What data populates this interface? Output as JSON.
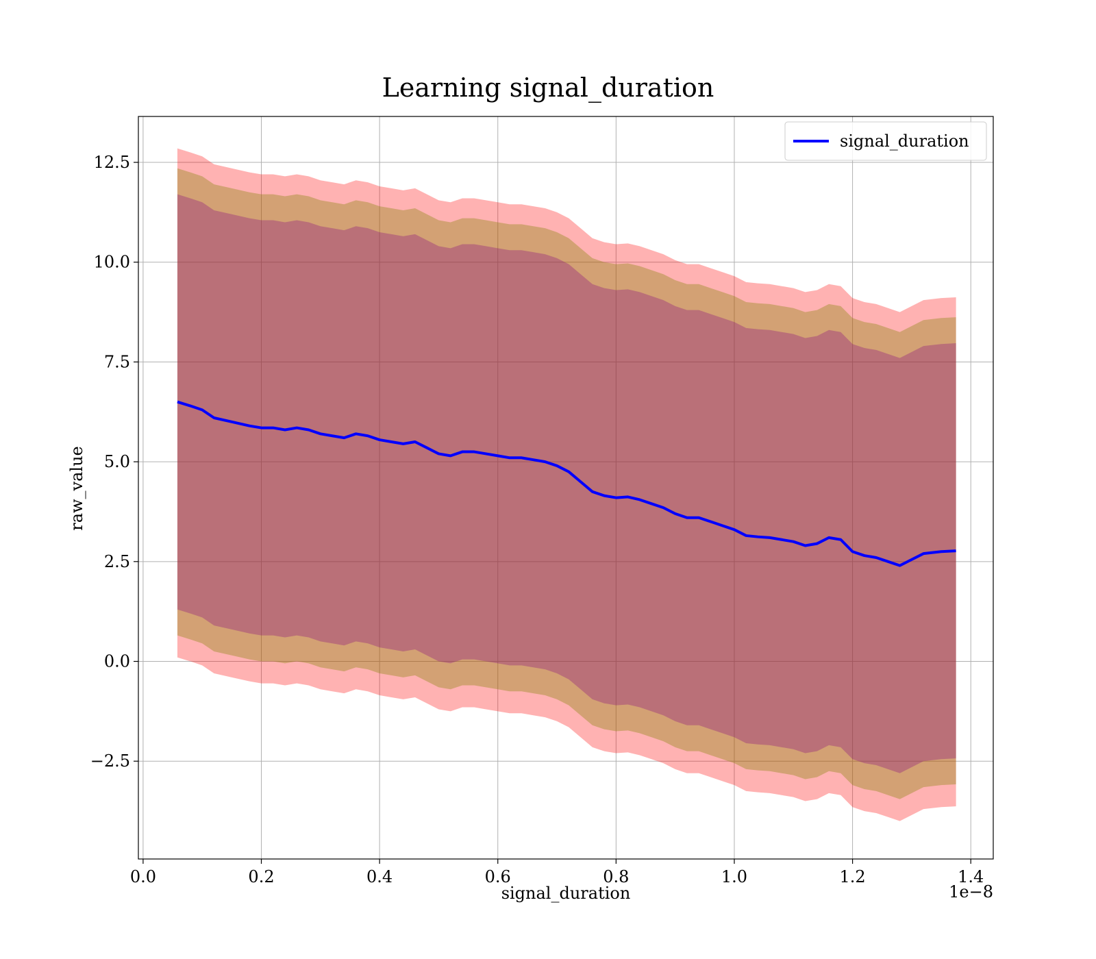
{
  "chart_data": {
    "type": "line",
    "title": "Learning signal_duration",
    "xlabel": "signal_duration",
    "ylabel": "raw_value",
    "x_scale_note": "1e−8",
    "xlim": [
      -0.008,
      1.438
    ],
    "ylim": [
      -4.95,
      13.65
    ],
    "x_ticks": [
      0.0,
      0.2,
      0.4,
      0.6,
      0.8,
      1.0,
      1.2,
      1.4
    ],
    "x_tick_labels": [
      "0.0",
      "0.2",
      "0.4",
      "0.6",
      "0.8",
      "1.0",
      "1.2",
      "1.4"
    ],
    "y_ticks": [
      -2.5,
      0.0,
      2.5,
      5.0,
      7.5,
      10.0,
      12.5
    ],
    "y_tick_labels": [
      "−2.5",
      "0.0",
      "2.5",
      "5.0",
      "7.5",
      "10.0",
      "12.5"
    ],
    "grid": true,
    "legend_position": "top-right",
    "series": [
      {
        "name": "signal_duration",
        "color": "#0000ff",
        "x": [
          0.058,
          0.08,
          0.1,
          0.12,
          0.15,
          0.18,
          0.2,
          0.22,
          0.24,
          0.26,
          0.28,
          0.3,
          0.32,
          0.34,
          0.36,
          0.38,
          0.4,
          0.42,
          0.44,
          0.46,
          0.48,
          0.5,
          0.52,
          0.54,
          0.56,
          0.58,
          0.6,
          0.62,
          0.64,
          0.66,
          0.68,
          0.7,
          0.72,
          0.74,
          0.76,
          0.78,
          0.8,
          0.82,
          0.84,
          0.86,
          0.88,
          0.9,
          0.92,
          0.94,
          0.96,
          0.98,
          1.0,
          1.02,
          1.04,
          1.06,
          1.08,
          1.1,
          1.12,
          1.14,
          1.16,
          1.18,
          1.2,
          1.22,
          1.24,
          1.26,
          1.28,
          1.3,
          1.32,
          1.35,
          1.375
        ],
        "y": [
          6.5,
          6.4,
          6.3,
          6.1,
          6.0,
          5.9,
          5.85,
          5.85,
          5.8,
          5.85,
          5.8,
          5.7,
          5.65,
          5.6,
          5.7,
          5.65,
          5.55,
          5.5,
          5.45,
          5.5,
          5.35,
          5.2,
          5.15,
          5.25,
          5.25,
          5.2,
          5.15,
          5.1,
          5.1,
          5.05,
          5.0,
          4.9,
          4.75,
          4.5,
          4.25,
          4.15,
          4.1,
          4.12,
          4.05,
          3.95,
          3.85,
          3.7,
          3.6,
          3.6,
          3.5,
          3.4,
          3.3,
          3.15,
          3.12,
          3.1,
          3.05,
          3.0,
          2.9,
          2.95,
          3.1,
          3.05,
          2.75,
          2.65,
          2.6,
          2.5,
          2.4,
          2.55,
          2.7,
          2.75,
          2.77
        ],
        "bands": [
          {
            "color": "#ff0000",
            "opacity": 0.3,
            "upper_offset": 6.35,
            "lower_offset": -6.4
          },
          {
            "color": "#808000",
            "opacity": 0.35,
            "upper_offset": 5.85,
            "lower_offset": -5.85
          },
          {
            "color": "#800080",
            "opacity": 0.3,
            "upper_offset": 5.2,
            "lower_offset": -5.2
          }
        ]
      }
    ]
  }
}
